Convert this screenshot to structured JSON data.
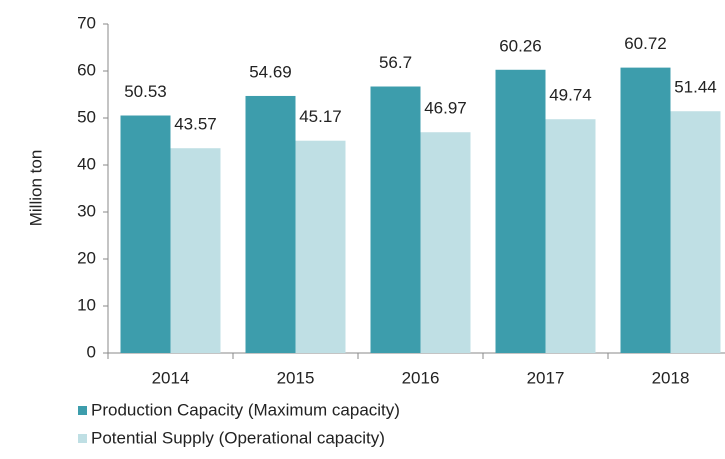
{
  "chart_data": {
    "type": "bar",
    "y_label": "Million ton",
    "categories": [
      "2014",
      "2015",
      "2016",
      "2017",
      "2018"
    ],
    "series": [
      {
        "name": "Production Capacity (Maximum capacity)",
        "color": "#3d9dac",
        "values": [
          50.53,
          54.69,
          56.7,
          60.26,
          60.72
        ]
      },
      {
        "name": "Potential Supply (Operational capacity)",
        "color": "#bfdfe4",
        "values": [
          43.57,
          45.17,
          46.97,
          49.74,
          51.44
        ]
      }
    ],
    "ylim": [
      0,
      70
    ],
    "yticks": [
      0,
      10,
      20,
      30,
      40,
      50,
      60,
      70
    ],
    "grid": false,
    "legend": "bottom"
  }
}
